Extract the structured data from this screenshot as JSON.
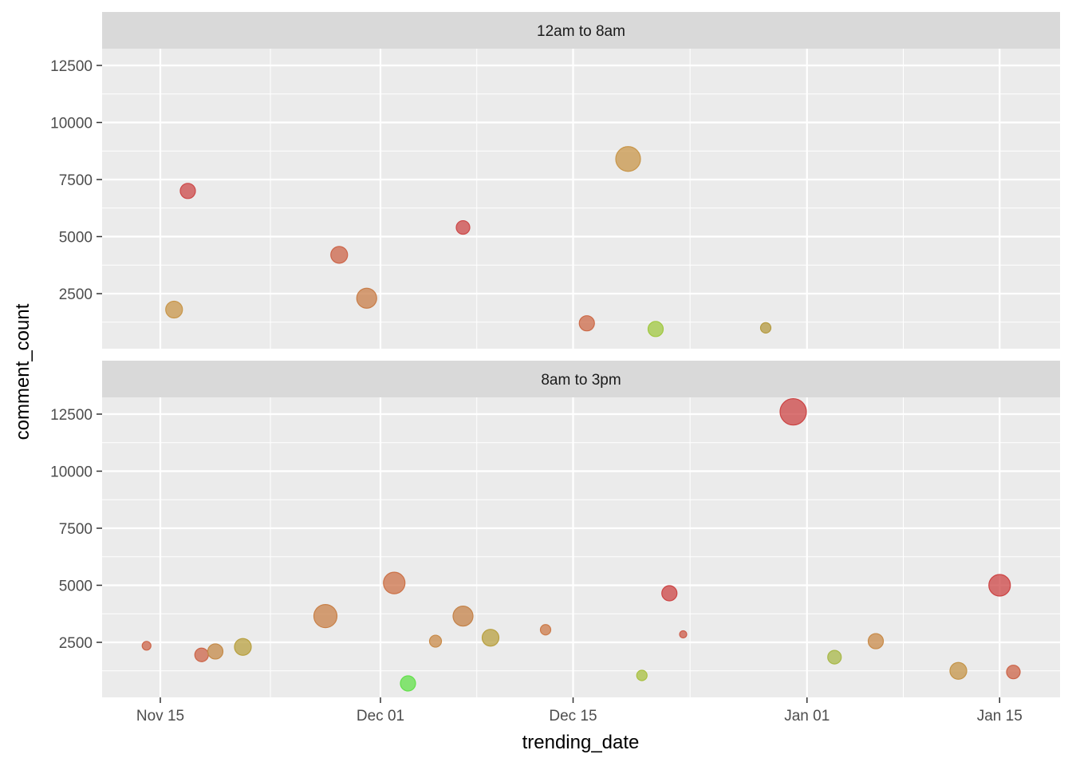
{
  "chart_data": {
    "type": "scatter",
    "xlabel": "trending_date",
    "ylabel": "comment_count",
    "x_ticks": [
      "Nov 15",
      "Dec 01",
      "Dec 15",
      "Jan 01",
      "Jan 15"
    ],
    "x_tick_dates": [
      "2017-11-15",
      "2017-12-01",
      "2017-12-15",
      "2018-01-01",
      "2018-01-15"
    ],
    "x_range": [
      "2017-11-11",
      "2018-01-17"
    ],
    "y_ticks": [
      "2500",
      "5000",
      "7500",
      "10000",
      "12500"
    ],
    "y_tick_values": [
      2500,
      5000,
      7500,
      10000,
      12500
    ],
    "ylim": [
      0,
      13500
    ],
    "grid": true,
    "legend": "none",
    "panels": [
      {
        "strip": "12am to 8am",
        "points": [
          {
            "x": "2017-11-16",
            "y": 1800,
            "size": 7,
            "color": "#c8964a"
          },
          {
            "x": "2017-11-17",
            "y": 7000,
            "size": 6,
            "color": "#cc4848"
          },
          {
            "x": "2017-11-28",
            "y": 4200,
            "size": 7,
            "color": "#cc6448"
          },
          {
            "x": "2017-11-30",
            "y": 2300,
            "size": 9,
            "color": "#c87d48"
          },
          {
            "x": "2017-12-07",
            "y": 5400,
            "size": 5,
            "color": "#cc4848"
          },
          {
            "x": "2017-12-16",
            "y": 1200,
            "size": 6,
            "color": "#cc6a48"
          },
          {
            "x": "2017-12-19",
            "y": 8400,
            "size": 12,
            "color": "#c8964a"
          },
          {
            "x": "2017-12-21",
            "y": 950,
            "size": 6,
            "color": "#a0c840"
          },
          {
            "x": "2017-12-29",
            "y": 1000,
            "size": 3,
            "color": "#b49a40"
          }
        ]
      },
      {
        "strip": "8am to 3pm",
        "points": [
          {
            "x": "2017-11-14",
            "y": 2350,
            "size": 2,
            "color": "#cc6448"
          },
          {
            "x": "2017-11-18",
            "y": 1950,
            "size": 5,
            "color": "#cc6448"
          },
          {
            "x": "2017-11-19",
            "y": 2100,
            "size": 6,
            "color": "#c48a48"
          },
          {
            "x": "2017-11-21",
            "y": 2300,
            "size": 7,
            "color": "#b8a040"
          },
          {
            "x": "2017-11-27",
            "y": 3650,
            "size": 11,
            "color": "#c88048"
          },
          {
            "x": "2017-12-02",
            "y": 5100,
            "size": 10,
            "color": "#cc7248"
          },
          {
            "x": "2017-12-03",
            "y": 700,
            "size": 6,
            "color": "#62e04a"
          },
          {
            "x": "2017-12-05",
            "y": 2550,
            "size": 4,
            "color": "#c88a48"
          },
          {
            "x": "2017-12-07",
            "y": 3650,
            "size": 9,
            "color": "#c48248"
          },
          {
            "x": "2017-12-09",
            "y": 2700,
            "size": 7,
            "color": "#b8a040"
          },
          {
            "x": "2017-12-13",
            "y": 3050,
            "size": 3,
            "color": "#cc7a48"
          },
          {
            "x": "2017-12-20",
            "y": 1050,
            "size": 3,
            "color": "#a8c040"
          },
          {
            "x": "2017-12-22",
            "y": 4650,
            "size": 6,
            "color": "#cc4444"
          },
          {
            "x": "2017-12-23",
            "y": 2850,
            "size": 1,
            "color": "#cc5a48"
          },
          {
            "x": "2017-12-31",
            "y": 12600,
            "size": 13,
            "color": "#cc4444"
          },
          {
            "x": "2018-01-03",
            "y": 1850,
            "size": 5,
            "color": "#a8b848"
          },
          {
            "x": "2018-01-06",
            "y": 2550,
            "size": 6,
            "color": "#c88a48"
          },
          {
            "x": "2018-01-12",
            "y": 1250,
            "size": 7,
            "color": "#c49448"
          },
          {
            "x": "2018-01-15",
            "y": 5000,
            "size": 10,
            "color": "#cc4444"
          },
          {
            "x": "2018-01-16",
            "y": 1200,
            "size": 5,
            "color": "#cc6448"
          }
        ]
      }
    ]
  }
}
